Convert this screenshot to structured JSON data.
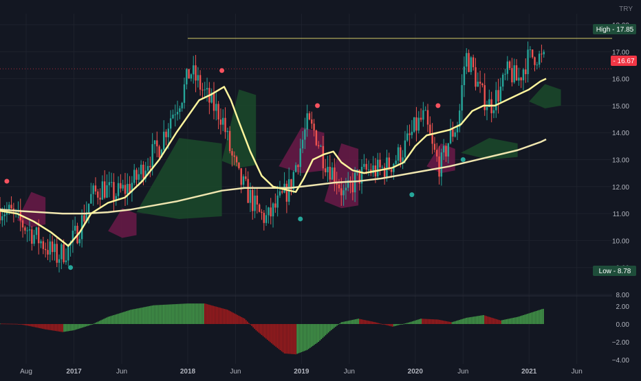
{
  "currency": "TRY",
  "labels": {
    "high": "High - 17.85",
    "low": "Low - 8.78",
    "last": "- 16.67"
  },
  "colors": {
    "background": "#131722",
    "up": "#26a69a",
    "down": "#ef5350",
    "ma_fast": "#fff59d",
    "ma_slow": "#f0e6b0",
    "cloud_bull": "#1b4a2a",
    "cloud_bear": "#6b1a48",
    "hist_up": "#4caf50",
    "hist_down": "#b71c1c",
    "highline": "#d4cc6a",
    "last_badge": "#f23645",
    "highlow_badge": "#1e4d3a"
  },
  "chart_data": [
    {
      "type": "candlestick",
      "x_axis": {
        "ticks": [
          {
            "label": "Aug",
            "t": 2016.58
          },
          {
            "label": "2017",
            "t": 2017.0
          },
          {
            "label": "Jun",
            "t": 2017.42
          },
          {
            "label": "2018",
            "t": 2018.0
          },
          {
            "label": "Jun",
            "t": 2018.42
          },
          {
            "label": "2019",
            "t": 2019.0
          },
          {
            "label": "Jun",
            "t": 2019.42
          },
          {
            "label": "2020",
            "t": 2020.0
          },
          {
            "label": "Jun",
            "t": 2020.42
          },
          {
            "label": "2021",
            "t": 2021.0
          },
          {
            "label": "Jun",
            "t": 2021.42
          }
        ],
        "range": [
          2016.35,
          2021.73
        ]
      },
      "y_axis": {
        "ticks": [
          "8.00",
          "9.00",
          "10.00",
          "11.00",
          "12.00",
          "13.00",
          "14.00",
          "15.00",
          "16.00",
          "17.00",
          "18.00"
        ],
        "range": [
          8.0,
          18.0
        ],
        "grid": true
      },
      "high": 17.85,
      "low": 8.78,
      "last": 16.67,
      "price_path": [
        [
          2016.35,
          11.2
        ],
        [
          2016.45,
          11.0
        ],
        [
          2016.55,
          10.6
        ],
        [
          2016.65,
          10.2
        ],
        [
          2016.75,
          9.8
        ],
        [
          2016.85,
          9.4
        ],
        [
          2016.95,
          9.7
        ],
        [
          2017.05,
          10.5
        ],
        [
          2017.15,
          11.6
        ],
        [
          2017.25,
          12.0
        ],
        [
          2017.35,
          11.7
        ],
        [
          2017.45,
          11.9
        ],
        [
          2017.55,
          12.3
        ],
        [
          2017.65,
          13.0
        ],
        [
          2017.75,
          13.5
        ],
        [
          2017.85,
          14.6
        ],
        [
          2017.95,
          15.4
        ],
        [
          2018.02,
          16.3
        ],
        [
          2018.1,
          15.8
        ],
        [
          2018.2,
          15.1
        ],
        [
          2018.3,
          14.6
        ],
        [
          2018.38,
          13.2
        ],
        [
          2018.45,
          12.3
        ],
        [
          2018.55,
          11.6
        ],
        [
          2018.62,
          11.0
        ],
        [
          2018.7,
          10.8
        ],
        [
          2018.8,
          11.4
        ],
        [
          2018.9,
          12.0
        ],
        [
          2018.98,
          13.3
        ],
        [
          2019.05,
          14.3
        ],
        [
          2019.12,
          14.0
        ],
        [
          2019.2,
          13.0
        ],
        [
          2019.3,
          12.4
        ],
        [
          2019.38,
          11.6
        ],
        [
          2019.48,
          12.3
        ],
        [
          2019.58,
          12.6
        ],
        [
          2019.68,
          12.6
        ],
        [
          2019.78,
          12.8
        ],
        [
          2019.9,
          13.4
        ],
        [
          2020.0,
          14.2
        ],
        [
          2020.08,
          14.6
        ],
        [
          2020.15,
          13.4
        ],
        [
          2020.22,
          12.7
        ],
        [
          2020.3,
          13.8
        ],
        [
          2020.38,
          14.4
        ],
        [
          2020.44,
          16.9
        ],
        [
          2020.5,
          16.4
        ],
        [
          2020.58,
          15.4
        ],
        [
          2020.66,
          15.0
        ],
        [
          2020.75,
          15.6
        ],
        [
          2020.82,
          16.3
        ],
        [
          2020.9,
          15.9
        ],
        [
          2020.98,
          16.7
        ],
        [
          2021.06,
          16.9
        ],
        [
          2021.12,
          16.67
        ]
      ],
      "ma_fast": [
        [
          2016.35,
          11.1
        ],
        [
          2016.5,
          11.0
        ],
        [
          2016.65,
          10.7
        ],
        [
          2016.8,
          10.3
        ],
        [
          2016.95,
          9.8
        ],
        [
          2017.05,
          10.3
        ],
        [
          2017.15,
          11.0
        ],
        [
          2017.3,
          11.4
        ],
        [
          2017.45,
          11.6
        ],
        [
          2017.6,
          12.2
        ],
        [
          2017.75,
          13.0
        ],
        [
          2017.9,
          14.0
        ],
        [
          2018.0,
          14.6
        ],
        [
          2018.1,
          15.2
        ],
        [
          2018.2,
          15.4
        ],
        [
          2018.32,
          15.7
        ],
        [
          2018.38,
          15.2
        ],
        [
          2018.45,
          14.4
        ],
        [
          2018.55,
          13.3
        ],
        [
          2018.65,
          12.4
        ],
        [
          2018.75,
          12.0
        ],
        [
          2018.85,
          11.9
        ],
        [
          2018.95,
          11.8
        ],
        [
          2019.02,
          12.3
        ],
        [
          2019.1,
          13.0
        ],
        [
          2019.2,
          13.2
        ],
        [
          2019.28,
          13.3
        ],
        [
          2019.35,
          12.9
        ],
        [
          2019.45,
          12.6
        ],
        [
          2019.55,
          12.5
        ],
        [
          2019.68,
          12.6
        ],
        [
          2019.8,
          12.7
        ],
        [
          2019.9,
          12.9
        ],
        [
          2020.0,
          13.5
        ],
        [
          2020.1,
          13.9
        ],
        [
          2020.2,
          14.0
        ],
        [
          2020.3,
          14.1
        ],
        [
          2020.4,
          14.3
        ],
        [
          2020.5,
          14.8
        ],
        [
          2020.6,
          15.0
        ],
        [
          2020.7,
          15.0
        ],
        [
          2020.8,
          15.2
        ],
        [
          2020.9,
          15.4
        ],
        [
          2021.0,
          15.6
        ],
        [
          2021.1,
          15.9
        ],
        [
          2021.15,
          16.0
        ]
      ],
      "ma_slow": [
        [
          2016.35,
          11.15
        ],
        [
          2016.5,
          11.1
        ],
        [
          2016.7,
          11.05
        ],
        [
          2016.9,
          11.0
        ],
        [
          2017.1,
          11.0
        ],
        [
          2017.3,
          11.05
        ],
        [
          2017.5,
          11.15
        ],
        [
          2017.7,
          11.3
        ],
        [
          2017.9,
          11.45
        ],
        [
          2018.1,
          11.65
        ],
        [
          2018.3,
          11.85
        ],
        [
          2018.5,
          11.95
        ],
        [
          2018.7,
          11.95
        ],
        [
          2018.9,
          11.95
        ],
        [
          2019.1,
          12.05
        ],
        [
          2019.3,
          12.15
        ],
        [
          2019.5,
          12.2
        ],
        [
          2019.7,
          12.3
        ],
        [
          2019.9,
          12.45
        ],
        [
          2020.1,
          12.6
        ],
        [
          2020.3,
          12.75
        ],
        [
          2020.5,
          12.95
        ],
        [
          2020.7,
          13.15
        ],
        [
          2020.9,
          13.35
        ],
        [
          2021.1,
          13.65
        ],
        [
          2021.15,
          13.75
        ]
      ],
      "markers_up": [
        [
          2016.97,
          9.0
        ],
        [
          2018.99,
          10.8
        ],
        [
          2019.97,
          11.7
        ],
        [
          2020.42,
          13.0
        ]
      ],
      "markers_down": [
        [
          2016.41,
          12.2
        ],
        [
          2018.3,
          16.3
        ],
        [
          2019.14,
          15.0
        ],
        [
          2020.2,
          15.0
        ]
      ],
      "clouds": [
        {
          "kind": "bear",
          "from": 2016.5,
          "to": 2016.75,
          "top": 11.8,
          "bottom": 10.6
        },
        {
          "kind": "bear",
          "from": 2017.3,
          "to": 2017.55,
          "top": 11.2,
          "bottom": 10.2
        },
        {
          "kind": "bull",
          "from": 2017.55,
          "to": 2018.3,
          "top": 13.8,
          "bottom": 10.9
        },
        {
          "kind": "bull",
          "from": 2018.3,
          "to": 2018.6,
          "top": 15.6,
          "bottom": 12.8
        },
        {
          "kind": "bear",
          "from": 2018.8,
          "to": 2019.2,
          "top": 14.2,
          "bottom": 12.6
        },
        {
          "kind": "bear",
          "from": 2019.2,
          "to": 2019.5,
          "top": 13.6,
          "bottom": 11.3
        },
        {
          "kind": "bear",
          "from": 2020.1,
          "to": 2020.35,
          "top": 13.6,
          "bottom": 12.6
        },
        {
          "kind": "bull",
          "from": 2020.4,
          "to": 2020.9,
          "top": 13.8,
          "bottom": 13.1
        },
        {
          "kind": "bull",
          "from": 2021.0,
          "to": 2021.28,
          "top": 15.8,
          "bottom": 15.0
        }
      ]
    },
    {
      "type": "histogram",
      "y_axis": {
        "ticks": [
          "2.00",
          "0.00",
          "−2.00",
          "−4.00"
        ],
        "range": [
          -4.0,
          2.5
        ]
      },
      "path": [
        [
          2016.35,
          0.05
        ],
        [
          2016.5,
          0.02
        ],
        [
          2016.6,
          -0.2
        ],
        [
          2016.75,
          -0.6
        ],
        [
          2016.9,
          -0.9
        ],
        [
          2017.0,
          -0.7
        ],
        [
          2017.15,
          -0.1
        ],
        [
          2017.3,
          0.8
        ],
        [
          2017.5,
          1.6
        ],
        [
          2017.7,
          2.1
        ],
        [
          2018.0,
          2.3
        ],
        [
          2018.15,
          2.3
        ],
        [
          2018.35,
          1.6
        ],
        [
          2018.5,
          0.6
        ],
        [
          2018.6,
          -0.7
        ],
        [
          2018.75,
          -2.3
        ],
        [
          2018.85,
          -3.3
        ],
        [
          2018.95,
          -3.4
        ],
        [
          2019.05,
          -2.9
        ],
        [
          2019.15,
          -2.0
        ],
        [
          2019.25,
          -0.8
        ],
        [
          2019.35,
          0.2
        ],
        [
          2019.5,
          0.6
        ],
        [
          2019.65,
          0.2
        ],
        [
          2019.8,
          -0.3
        ],
        [
          2019.95,
          0.2
        ],
        [
          2020.05,
          0.6
        ],
        [
          2020.2,
          0.5
        ],
        [
          2020.32,
          0.2
        ],
        [
          2020.45,
          0.7
        ],
        [
          2020.6,
          1.0
        ],
        [
          2020.75,
          0.4
        ],
        [
          2020.9,
          0.8
        ],
        [
          2021.0,
          1.2
        ],
        [
          2021.12,
          1.7
        ]
      ]
    }
  ]
}
